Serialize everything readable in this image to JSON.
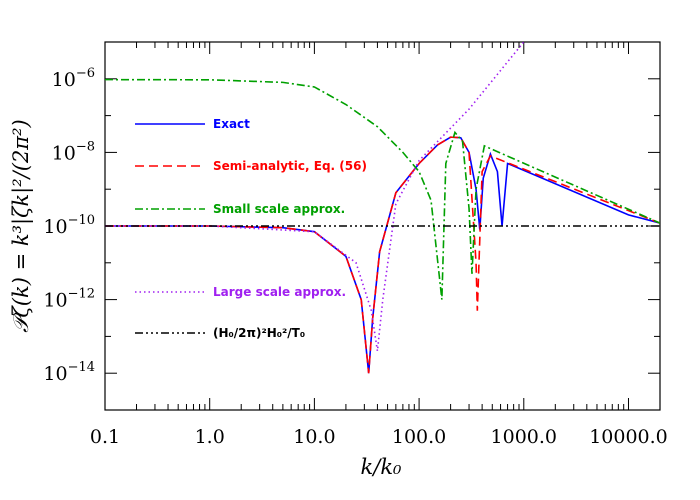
{
  "chart_data": {
    "type": "line",
    "title": "",
    "xlabel": "k/k₀",
    "ylabel": "𝒫ζ(k) = k³|ζk|²/(2π²)",
    "xscale": "log",
    "yscale": "log",
    "xlim": [
      0.1,
      20000
    ],
    "ylim": [
      1e-15,
      1e-05
    ],
    "grid": false,
    "legend_position": "left, inside plot",
    "x_tick_labels": [
      "0.1",
      "1.0",
      "10.0",
      "100.0",
      "1000.0",
      "10000.0"
    ],
    "y_tick_labels": [
      {
        "mantissa": "10",
        "exp": "−14"
      },
      {
        "mantissa": "10",
        "exp": "−12"
      },
      {
        "mantissa": "10",
        "exp": "−10"
      },
      {
        "mantissa": "10",
        "exp": "−8"
      },
      {
        "mantissa": "10",
        "exp": "−6"
      }
    ],
    "series": [
      {
        "name": "Exact",
        "color": "#0000ff",
        "dash": "solid",
        "points": [
          [
            0.1,
            1e-10
          ],
          [
            1,
            1e-10
          ],
          [
            5,
            9e-11
          ],
          [
            10,
            7e-11
          ],
          [
            20,
            1.5e-11
          ],
          [
            28,
            1e-12
          ],
          [
            33,
            1e-14
          ],
          [
            36,
            3e-13
          ],
          [
            42,
            2e-11
          ],
          [
            60,
            8e-10
          ],
          [
            100,
            5e-09
          ],
          [
            150,
            1.6e-08
          ],
          [
            200,
            2.6e-08
          ],
          [
            250,
            2.5e-08
          ],
          [
            300,
            1e-08
          ],
          [
            350,
            1e-09
          ],
          [
            380,
            8e-11
          ],
          [
            410,
            2e-09
          ],
          [
            480,
            9e-09
          ],
          [
            560,
            3e-09
          ],
          [
            620,
            1e-10
          ],
          [
            700,
            5e-09
          ],
          [
            10000,
            2e-10
          ],
          [
            20000,
            1.2e-10
          ]
        ]
      },
      {
        "name": "Semi-analytic, Eq. (56)",
        "color": "#ff0000",
        "dash": "dashed",
        "points": [
          [
            0.1,
            1e-10
          ],
          [
            1,
            1e-10
          ],
          [
            5,
            9e-11
          ],
          [
            10,
            7e-11
          ],
          [
            20,
            1.5e-11
          ],
          [
            28,
            1e-12
          ],
          [
            33,
            1e-14
          ],
          [
            36,
            3e-13
          ],
          [
            42,
            2e-11
          ],
          [
            60,
            8e-10
          ],
          [
            100,
            5e-09
          ],
          [
            150,
            1.6e-08
          ],
          [
            200,
            2.6e-08
          ],
          [
            250,
            2.5e-08
          ],
          [
            300,
            1e-08
          ],
          [
            350,
            1e-11
          ],
          [
            360,
            5e-13
          ],
          [
            400,
            3e-09
          ],
          [
            480,
            8e-09
          ],
          [
            20000,
            1.2e-10
          ]
        ]
      },
      {
        "name": "Small scale approx.",
        "color": "#00a000",
        "dash": "dashdot",
        "points": [
          [
            0.1,
            9.5e-07
          ],
          [
            1,
            9.4e-07
          ],
          [
            5,
            8e-07
          ],
          [
            10,
            6e-07
          ],
          [
            20,
            2e-07
          ],
          [
            40,
            5e-08
          ],
          [
            70,
            1e-08
          ],
          [
            100,
            3e-09
          ],
          [
            130,
            5e-10
          ],
          [
            165,
            1e-12
          ],
          [
            180,
            5e-09
          ],
          [
            220,
            3.5e-08
          ],
          [
            260,
            2e-08
          ],
          [
            300,
            3e-10
          ],
          [
            320,
            5e-12
          ],
          [
            350,
            1e-09
          ],
          [
            420,
            1.5e-08
          ],
          [
            20000,
            1.2e-10
          ]
        ]
      },
      {
        "name": "Large scale approx.",
        "color": "#a020f0",
        "dash": "dotted",
        "points": [
          [
            0.1,
            1e-10
          ],
          [
            1,
            1e-10
          ],
          [
            10,
            7e-11
          ],
          [
            25,
            1e-11
          ],
          [
            35,
            5e-13
          ],
          [
            40,
            4e-14
          ],
          [
            45,
            1e-12
          ],
          [
            60,
            4e-10
          ],
          [
            100,
            6e-09
          ],
          [
            300,
            1.5e-07
          ],
          [
            1000,
            1e-05
          ]
        ]
      },
      {
        "name": "(H₀/2π)²H₀²/T₀",
        "color": "#000000",
        "dash": "dashdotdotdot",
        "points": [
          [
            0.1,
            1e-10
          ],
          [
            20000,
            1e-10
          ]
        ]
      }
    ]
  }
}
